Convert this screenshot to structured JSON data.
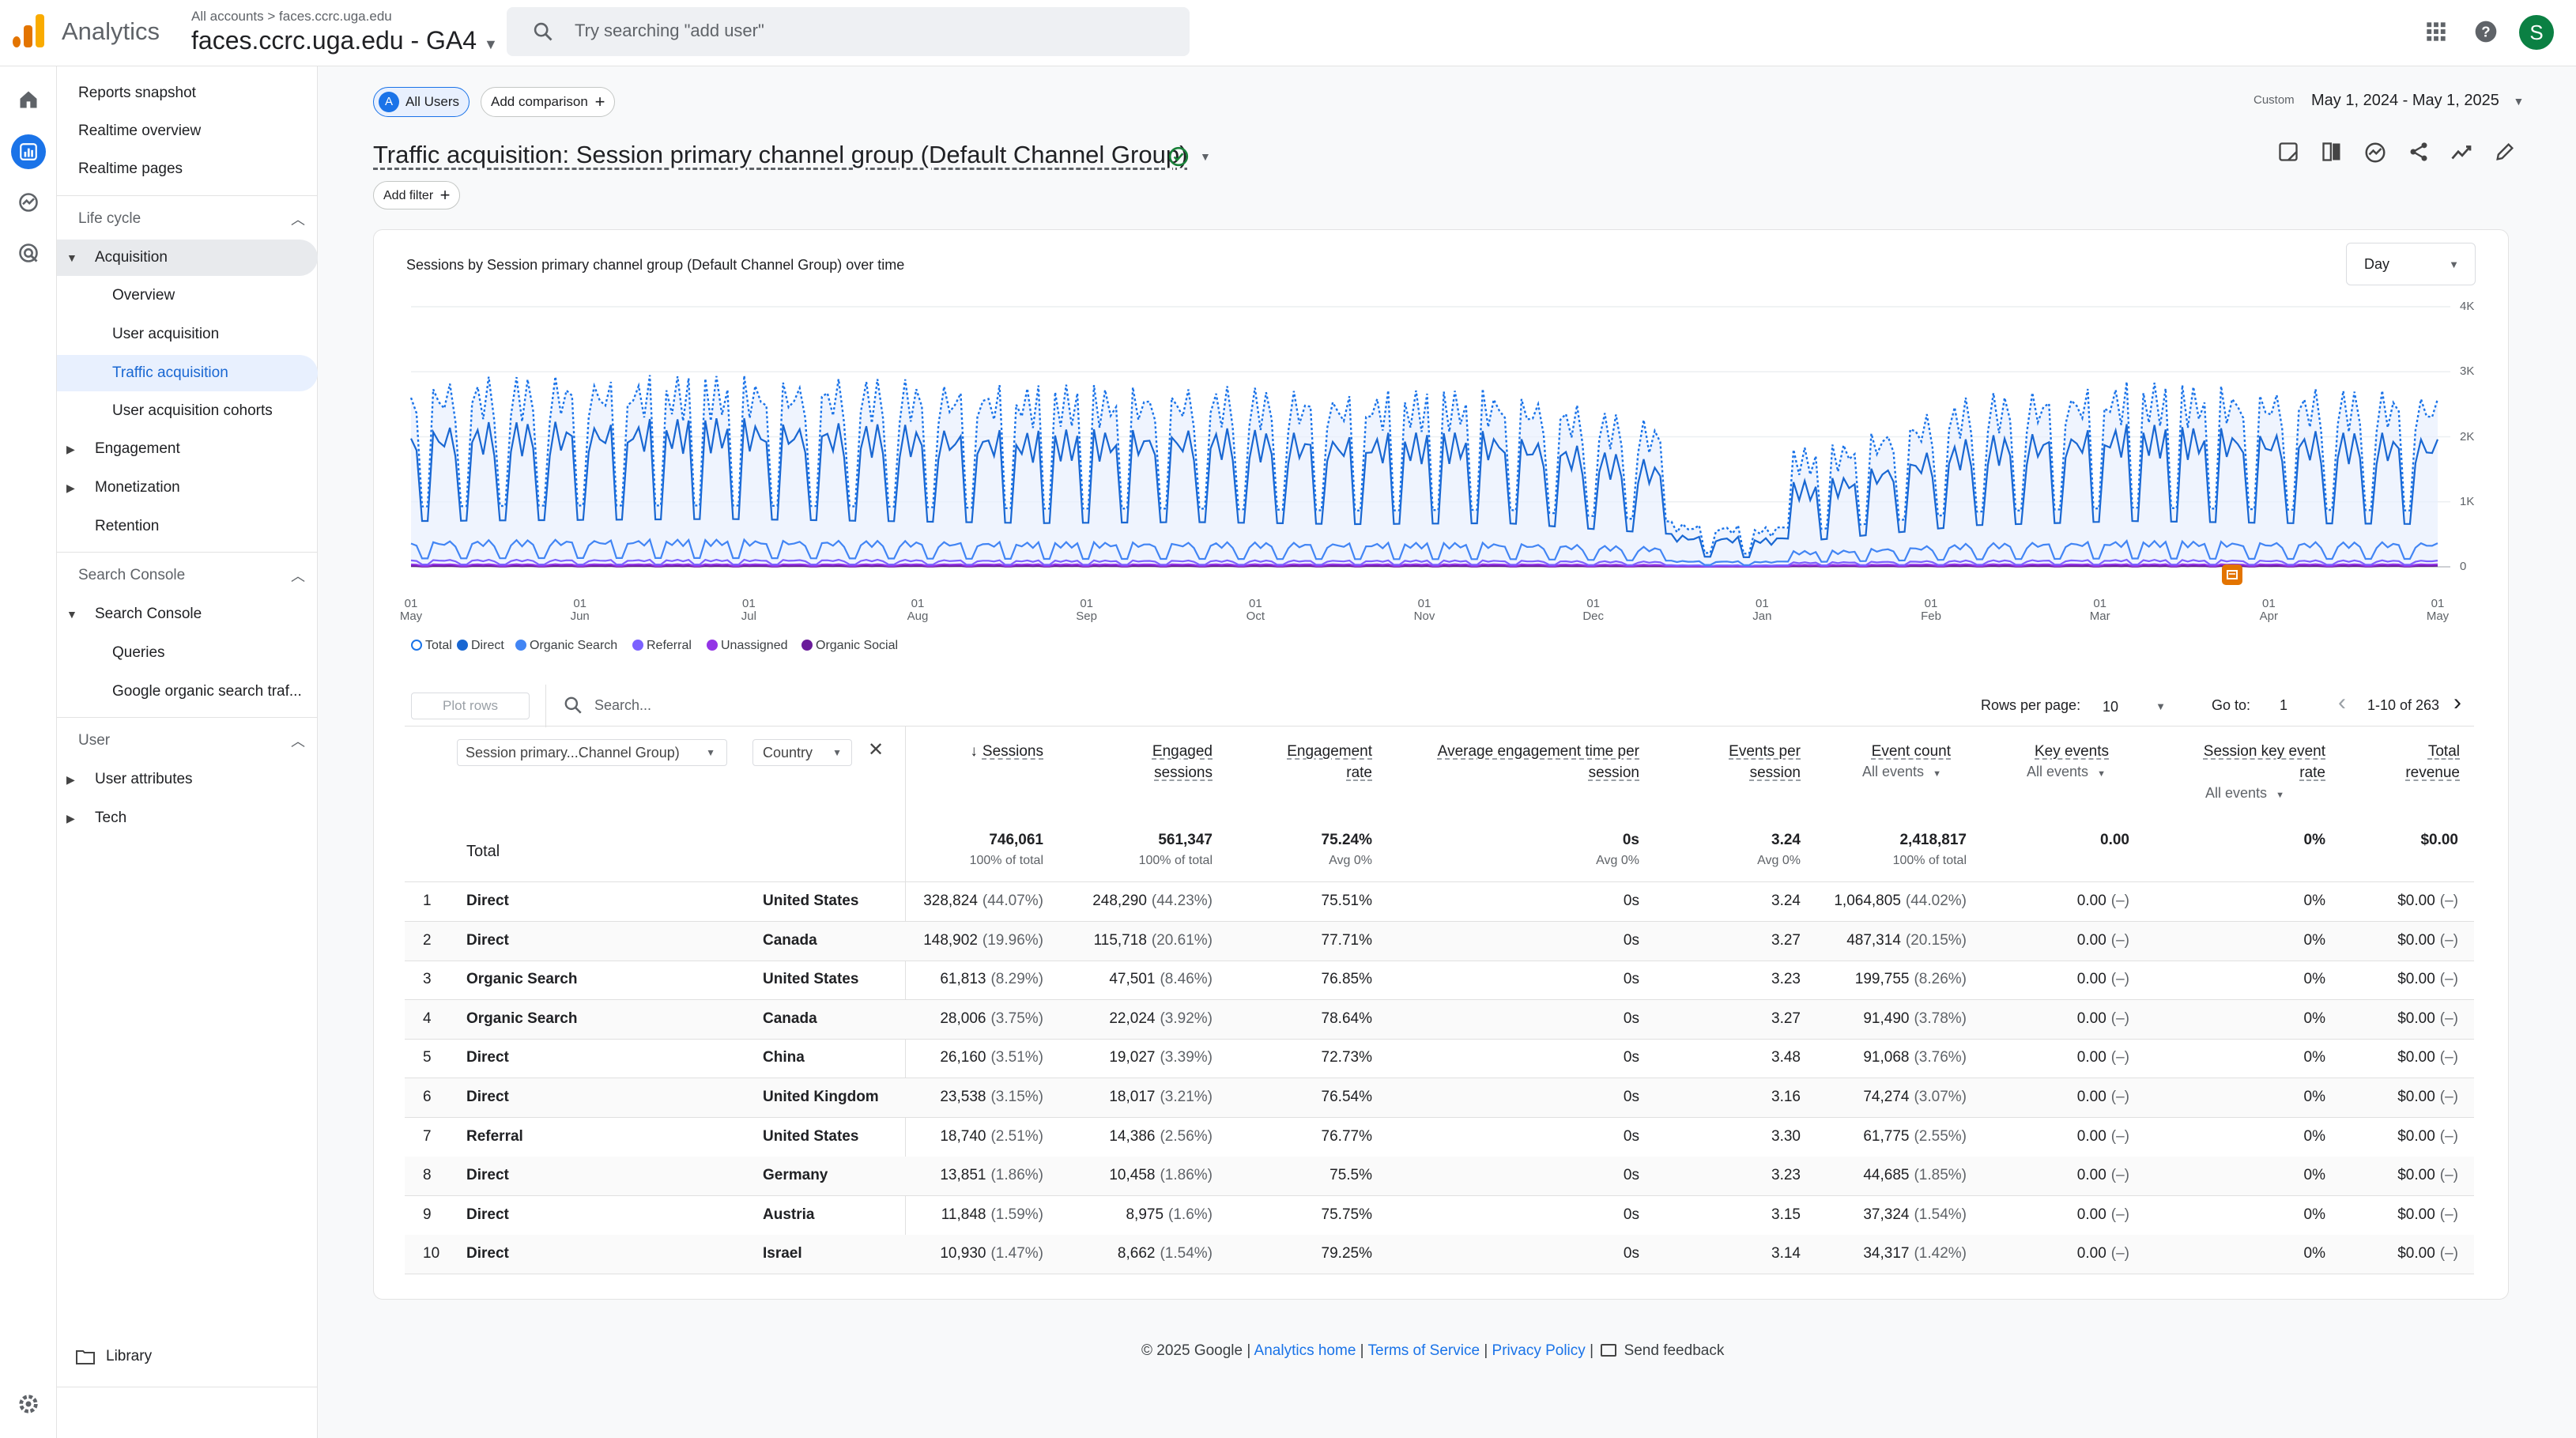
{
  "header": {
    "app_name": "Analytics",
    "breadcrumb": "All accounts > faces.ccrc.uga.edu",
    "property": "faces.ccrc.uga.edu - GA4",
    "search_placeholder": "Try searching \"add user\"",
    "avatar_letter": "S"
  },
  "nav": {
    "top_links": [
      "Reports snapshot",
      "Realtime overview",
      "Realtime pages"
    ],
    "lifecycle_title": "Life cycle",
    "acquisition": "Acquisition",
    "acq_items": [
      "Overview",
      "User acquisition",
      "Traffic acquisition",
      "User acquisition cohorts"
    ],
    "engagement": "Engagement",
    "monetization": "Monetization",
    "retention": "Retention",
    "sc_title": "Search Console",
    "sc_group": "Search Console",
    "sc_items": [
      "Queries",
      "Google organic search traf..."
    ],
    "user_title": "User",
    "user_attributes": "User attributes",
    "tech": "Tech",
    "library": "Library"
  },
  "toolbar": {
    "segment_letter": "A",
    "segment": "All Users",
    "add_comparison": "Add comparison",
    "date_prefix": "Custom",
    "date_range": "May 1, 2024 - May 1, 2025",
    "title": "Traffic acquisition: Session primary channel group (Default Channel Group)",
    "add_filter": "Add filter"
  },
  "chart_data": {
    "type": "line",
    "title": "Sessions by Session primary channel group (Default Channel Group) over time",
    "granularity": "Day",
    "x_ticks": [
      "01 May",
      "01 Jun",
      "01 Jul",
      "01 Aug",
      "01 Sep",
      "01 Oct",
      "01 Nov",
      "01 Dec",
      "01 Jan",
      "01 Feb",
      "01 Mar",
      "01 Apr",
      "01 May"
    ],
    "y_ticks": [
      "4K",
      "3K",
      "2K",
      "1K",
      "0"
    ],
    "ylim": [
      0,
      4000
    ],
    "legend_position": "bottom",
    "series": [
      {
        "name": "Total",
        "color": "#1a73e8",
        "style": "dotted",
        "weekday_level": [
          2900,
          2950,
          2950,
          2900,
          2800,
          2800,
          2700,
          2750,
          2200,
          1800,
          2650,
          2850,
          2750,
          2700
        ]
      },
      {
        "name": "Direct",
        "color": "#1967d2",
        "weekday_level": [
          2200,
          2250,
          2300,
          2200,
          2100,
          2150,
          2050,
          2100,
          1600,
          1300,
          2000,
          2200,
          2100,
          2050
        ]
      },
      {
        "name": "Organic Search",
        "color": "#4285f4",
        "weekday_level": [
          400,
          420,
          420,
          400,
          380,
          380,
          370,
          370,
          300,
          240,
          360,
          400,
          380,
          380
        ]
      },
      {
        "name": "Referral",
        "color": "#7b61ff",
        "weekday_level": [
          110,
          110,
          110,
          110,
          100,
          100,
          100,
          100,
          80,
          70,
          100,
          110,
          100,
          100
        ]
      },
      {
        "name": "Unassigned",
        "color": "#9334e6",
        "weekday_level": [
          40,
          40,
          40,
          40,
          40,
          40,
          40,
          40,
          30,
          30,
          40,
          40,
          40,
          40
        ]
      },
      {
        "name": "Organic Social",
        "color": "#6a1b9a",
        "weekday_level": [
          15,
          15,
          15,
          15,
          15,
          15,
          15,
          15,
          10,
          10,
          15,
          15,
          15,
          15
        ]
      }
    ],
    "annotation": "note marker near 01 Apr"
  },
  "table_controls": {
    "plot_rows": "Plot rows",
    "search_placeholder": "Search...",
    "rows_per_page_label": "Rows per page:",
    "rows_per_page": "10",
    "goto_label": "Go to:",
    "goto_value": "1",
    "pagination": "1-10 of 263",
    "dim1": "Session primary...Channel Group)",
    "dim2": "Country"
  },
  "table": {
    "headers": {
      "sessions": "Sessions",
      "engaged_a": "Engaged",
      "engaged_b": "sessions",
      "rate_a": "Engagement",
      "rate_b": "rate",
      "avg_a": "Average engagement time per",
      "avg_b": "session",
      "epsession_a": "Events per",
      "epsession_b": "session",
      "event_count": "Event count",
      "event_count_sub": "All events",
      "key_events": "Key events",
      "key_events_sub": "All events",
      "skr_a": "Session key event",
      "skr_b": "rate",
      "skr_sub": "All events",
      "rev_a": "Total",
      "rev_b": "revenue"
    },
    "total": {
      "label": "Total",
      "sessions": "746,061",
      "sessions_sub": "100% of total",
      "engaged": "561,347",
      "engaged_sub": "100% of total",
      "rate": "75.24%",
      "rate_sub": "Avg 0%",
      "avg": "0s",
      "avg_sub": "Avg 0%",
      "eps": "3.24",
      "eps_sub": "Avg 0%",
      "events": "2,418,817",
      "events_sub": "100% of total",
      "key": "0.00",
      "skr": "0%",
      "rev": "$0.00"
    },
    "rows": [
      {
        "n": "1",
        "channel": "Direct",
        "country": "United States",
        "sessions": "328,824",
        "sessions_pct": "(44.07%)",
        "engaged": "248,290",
        "engaged_pct": "(44.23%)",
        "rate": "75.51%",
        "avg": "0s",
        "eps": "3.24",
        "events": "1,064,805",
        "events_pct": "(44.02%)",
        "key": "0.00",
        "key_pct": "(–)",
        "skr": "0%",
        "rev": "$0.00",
        "rev_pct": "(–)"
      },
      {
        "n": "2",
        "channel": "Direct",
        "country": "Canada",
        "sessions": "148,902",
        "sessions_pct": "(19.96%)",
        "engaged": "115,718",
        "engaged_pct": "(20.61%)",
        "rate": "77.71%",
        "avg": "0s",
        "eps": "3.27",
        "events": "487,314",
        "events_pct": "(20.15%)",
        "key": "0.00",
        "key_pct": "(–)",
        "skr": "0%",
        "rev": "$0.00",
        "rev_pct": "(–)"
      },
      {
        "n": "3",
        "channel": "Organic Search",
        "country": "United States",
        "sessions": "61,813",
        "sessions_pct": "(8.29%)",
        "engaged": "47,501",
        "engaged_pct": "(8.46%)",
        "rate": "76.85%",
        "avg": "0s",
        "eps": "3.23",
        "events": "199,755",
        "events_pct": "(8.26%)",
        "key": "0.00",
        "key_pct": "(–)",
        "skr": "0%",
        "rev": "$0.00",
        "rev_pct": "(–)"
      },
      {
        "n": "4",
        "channel": "Organic Search",
        "country": "Canada",
        "sessions": "28,006",
        "sessions_pct": "(3.75%)",
        "engaged": "22,024",
        "engaged_pct": "(3.92%)",
        "rate": "78.64%",
        "avg": "0s",
        "eps": "3.27",
        "events": "91,490",
        "events_pct": "(3.78%)",
        "key": "0.00",
        "key_pct": "(–)",
        "skr": "0%",
        "rev": "$0.00",
        "rev_pct": "(–)"
      },
      {
        "n": "5",
        "channel": "Direct",
        "country": "China",
        "sessions": "26,160",
        "sessions_pct": "(3.51%)",
        "engaged": "19,027",
        "engaged_pct": "(3.39%)",
        "rate": "72.73%",
        "avg": "0s",
        "eps": "3.48",
        "events": "91,068",
        "events_pct": "(3.76%)",
        "key": "0.00",
        "key_pct": "(–)",
        "skr": "0%",
        "rev": "$0.00",
        "rev_pct": "(–)"
      },
      {
        "n": "6",
        "channel": "Direct",
        "country": "United Kingdom",
        "sessions": "23,538",
        "sessions_pct": "(3.15%)",
        "engaged": "18,017",
        "engaged_pct": "(3.21%)",
        "rate": "76.54%",
        "avg": "0s",
        "eps": "3.16",
        "events": "74,274",
        "events_pct": "(3.07%)",
        "key": "0.00",
        "key_pct": "(–)",
        "skr": "0%",
        "rev": "$0.00",
        "rev_pct": "(–)"
      },
      {
        "n": "7",
        "channel": "Referral",
        "country": "United States",
        "sessions": "18,740",
        "sessions_pct": "(2.51%)",
        "engaged": "14,386",
        "engaged_pct": "(2.56%)",
        "rate": "76.77%",
        "avg": "0s",
        "eps": "3.30",
        "events": "61,775",
        "events_pct": "(2.55%)",
        "key": "0.00",
        "key_pct": "(–)",
        "skr": "0%",
        "rev": "$0.00",
        "rev_pct": "(–)"
      },
      {
        "n": "8",
        "channel": "Direct",
        "country": "Germany",
        "sessions": "13,851",
        "sessions_pct": "(1.86%)",
        "engaged": "10,458",
        "engaged_pct": "(1.86%)",
        "rate": "75.5%",
        "avg": "0s",
        "eps": "3.23",
        "events": "44,685",
        "events_pct": "(1.85%)",
        "key": "0.00",
        "key_pct": "(–)",
        "skr": "0%",
        "rev": "$0.00",
        "rev_pct": "(–)"
      },
      {
        "n": "9",
        "channel": "Direct",
        "country": "Austria",
        "sessions": "11,848",
        "sessions_pct": "(1.59%)",
        "engaged": "8,975",
        "engaged_pct": "(1.6%)",
        "rate": "75.75%",
        "avg": "0s",
        "eps": "3.15",
        "events": "37,324",
        "events_pct": "(1.54%)",
        "key": "0.00",
        "key_pct": "(–)",
        "skr": "0%",
        "rev": "$0.00",
        "rev_pct": "(–)"
      },
      {
        "n": "10",
        "channel": "Direct",
        "country": "Israel",
        "sessions": "10,930",
        "sessions_pct": "(1.47%)",
        "engaged": "8,662",
        "engaged_pct": "(1.54%)",
        "rate": "79.25%",
        "avg": "0s",
        "eps": "3.14",
        "events": "34,317",
        "events_pct": "(1.42%)",
        "key": "0.00",
        "key_pct": "(–)",
        "skr": "0%",
        "rev": "$0.00",
        "rev_pct": "(–)"
      }
    ]
  },
  "footer": {
    "copyright": "© 2025 Google |",
    "analytics_home": "Analytics home",
    "terms": "Terms of Service",
    "privacy": "Privacy Policy",
    "sep": "|",
    "feedback": "Send feedback"
  },
  "colors": {
    "accent": "#1a73e8",
    "selected_bg": "#e8f0fe",
    "success": "#188038"
  }
}
